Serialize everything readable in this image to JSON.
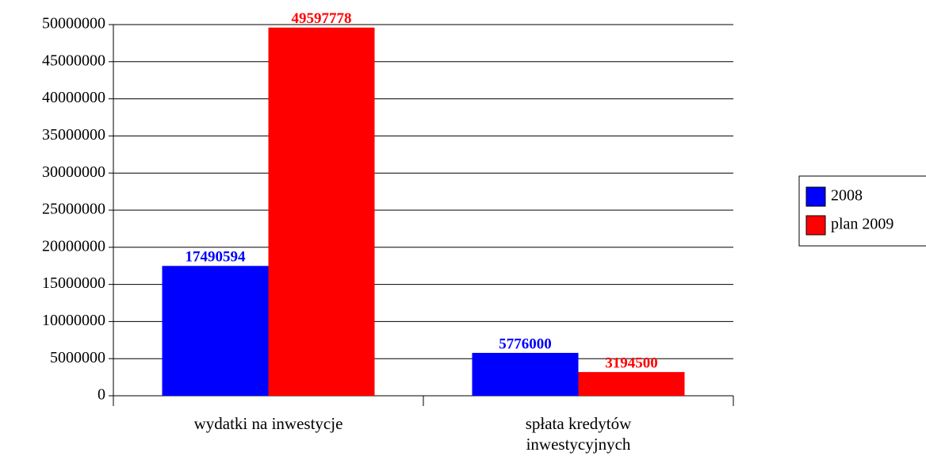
{
  "chart_data": {
    "type": "bar",
    "categories": [
      "wydatki na inwestycje",
      "spłata kredytów inwestycyjnych"
    ],
    "series": [
      {
        "name": "2008",
        "color": "#0000ff",
        "values": [
          17490594,
          5776000
        ]
      },
      {
        "name": "plan 2009",
        "color": "#ff0000",
        "values": [
          49597778,
          3194500
        ]
      }
    ],
    "ylim": [
      0,
      50000000
    ],
    "yticks": [
      0,
      5000000,
      10000000,
      15000000,
      20000000,
      25000000,
      30000000,
      35000000,
      40000000,
      45000000,
      50000000
    ],
    "grid": true,
    "legend": "right"
  }
}
